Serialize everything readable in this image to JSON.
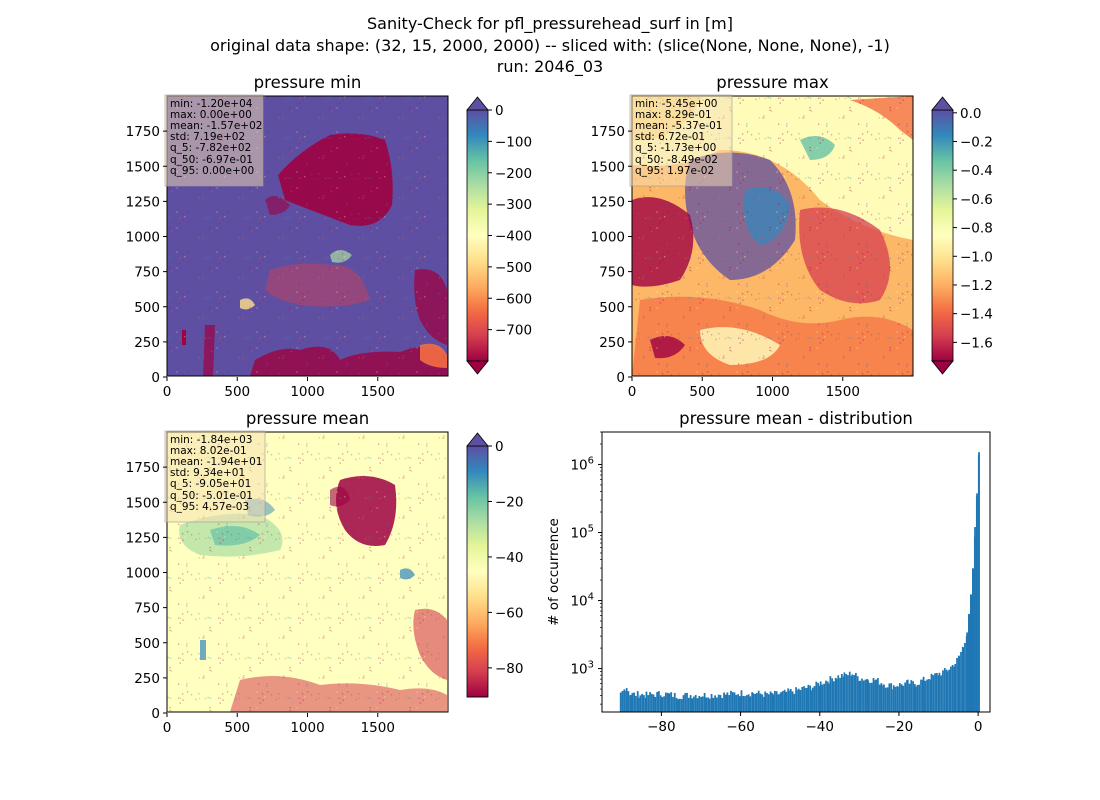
{
  "figure": {
    "title_lines": [
      "Sanity-Check for pfl_pressurehead_surf in [m]",
      "original data shape: (32, 15, 2000, 2000) -- sliced with: (slice(None, None, None), -1)",
      "run: 2046_03"
    ],
    "colormap": "Spectral",
    "colormap_stops": [
      "#9e0142",
      "#d53e4f",
      "#f46d43",
      "#fdae61",
      "#fee08b",
      "#ffffbf",
      "#e6f598",
      "#abdda4",
      "#66c2a5",
      "#3288bd",
      "#5e4fa2"
    ],
    "over_color": "#5e4fa2",
    "under_color": "#9e0142",
    "hist_color": "#1f77b4"
  },
  "chart_data": [
    {
      "type": "heatmap",
      "title": "pressure min",
      "x_ticks": [
        "0",
        "500",
        "1000",
        "1500"
      ],
      "y_ticks": [
        "0",
        "250",
        "500",
        "750",
        "1000",
        "1250",
        "1500",
        "1750"
      ],
      "extent": [
        0,
        2000
      ],
      "dominant_value": 0,
      "colorbar": {
        "range": [
          -800,
          0
        ],
        "ticks": [
          0,
          -100,
          -200,
          -300,
          -400,
          -500,
          -600,
          -700
        ],
        "extend": "both"
      },
      "stats": [
        "min: -1.20e+04",
        "max: 0.00e+00",
        "mean: -1.57e+02",
        "std: 7.19e+02",
        "q_5: -7.82e+02",
        "q_50: -6.97e-01",
        "q_95: 0.00e+00"
      ]
    },
    {
      "type": "heatmap",
      "title": "pressure max",
      "x_ticks": [
        "0",
        "500",
        "1000",
        "1500"
      ],
      "y_ticks": [
        "0",
        "250",
        "500",
        "750",
        "1000",
        "1250",
        "1500",
        "1750"
      ],
      "extent": [
        0,
        2000
      ],
      "dominant_value": -0.1,
      "colorbar": {
        "range": [
          -1.73,
          0.0197
        ],
        "ticks": [
          0.0,
          -0.2,
          -0.4,
          -0.6,
          -0.8,
          -1.0,
          -1.2,
          -1.4,
          -1.6
        ],
        "extend": "both"
      },
      "stats": [
        "min: -5.45e+00",
        "max: 8.29e-01",
        "mean: -5.37e-01",
        "std: 6.72e-01",
        "q_5: -1.73e+00",
        "q_50: -8.49e-02",
        "q_95: 1.97e-02"
      ]
    },
    {
      "type": "heatmap",
      "title": "pressure mean",
      "x_ticks": [
        "0",
        "500",
        "1000",
        "1500"
      ],
      "y_ticks": [
        "0",
        "250",
        "500",
        "750",
        "1000",
        "1250",
        "1500",
        "1750"
      ],
      "extent": [
        0,
        2000
      ],
      "dominant_value": 0,
      "colorbar": {
        "range": [
          -90.5,
          0.00457
        ],
        "ticks": [
          0,
          -20,
          -40,
          -60,
          -80
        ],
        "extend": "max"
      },
      "stats": [
        "min: -1.84e+03",
        "max: 8.02e-01",
        "mean: -1.94e+01",
        "std: 9.34e+01",
        "q_5: -9.05e+01",
        "q_50: -5.01e-01",
        "q_95: 4.57e-03"
      ]
    },
    {
      "type": "bar",
      "title": "pressure mean - distribution",
      "ylabel": "# of occurrence",
      "y_scale": "log",
      "x_ticks": [
        -80,
        -60,
        -40,
        -20,
        0
      ],
      "y_ticks": [
        "10^3",
        "10^4",
        "10^5",
        "10^6"
      ],
      "xlim": [
        -95,
        3
      ],
      "ylim": [
        230,
        3000000
      ],
      "bin_width": 0.45,
      "x": [
        -90.5,
        -89,
        -88,
        -86,
        -84,
        -80,
        -76,
        -72,
        -68,
        -64,
        -60,
        -57,
        -54,
        -52,
        -50,
        -48,
        -46,
        -44,
        -42,
        -40,
        -38,
        -36,
        -34,
        -32,
        -30,
        -28,
        -26,
        -24,
        -22,
        -20,
        -18,
        -16,
        -14,
        -12,
        -10,
        -8,
        -6,
        -5,
        -4,
        -3,
        -2.5,
        -2,
        -1.5,
        -1,
        -0.5,
        0
      ],
      "values": [
        420,
        540,
        420,
        420,
        410,
        430,
        400,
        410,
        410,
        420,
        440,
        440,
        420,
        420,
        430,
        460,
        480,
        520,
        540,
        620,
        680,
        760,
        800,
        850,
        720,
        700,
        680,
        600,
        560,
        580,
        620,
        600,
        680,
        760,
        850,
        950,
        1200,
        1500,
        2100,
        3500,
        6000,
        12000,
        30000,
        110000,
        400000,
        1700000
      ]
    }
  ]
}
